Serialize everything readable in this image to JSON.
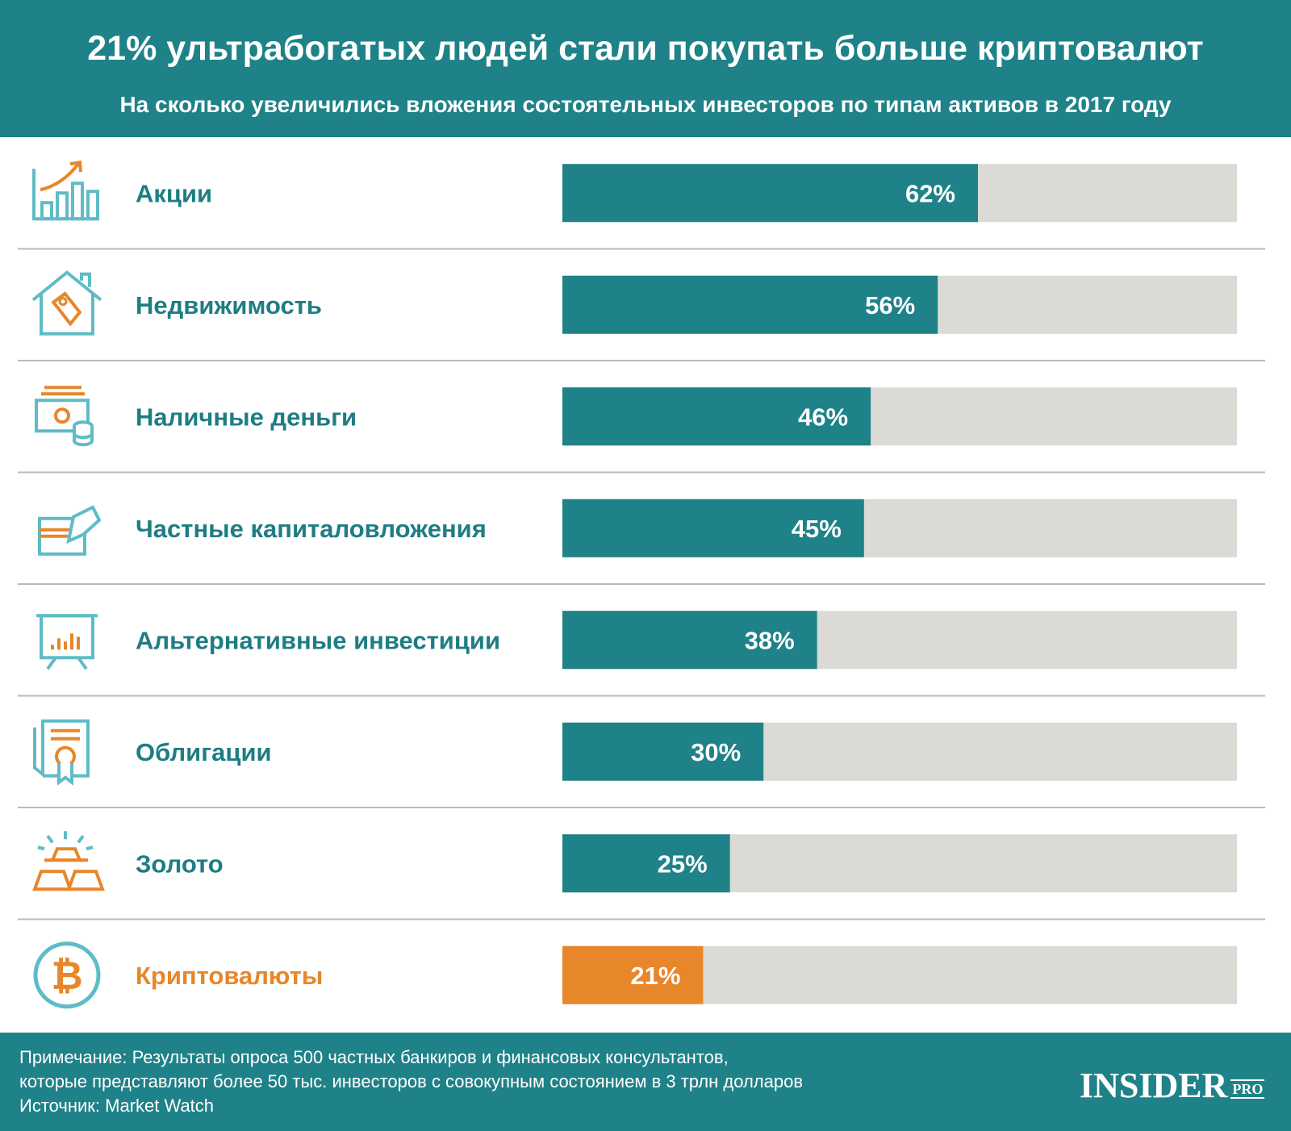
{
  "header": {
    "title": "21% ультрабогатых людей стали покупать больше криптовалют",
    "subtitle": "На сколько увеличились вложения состоятельных инвесторов по типам активов в 2017 году"
  },
  "colors": {
    "header_bg": "#1e8288",
    "bar": "#1e8288",
    "bar_highlight": "#e8862a",
    "track": "#dcdad4",
    "label": "#1e7d83",
    "label_highlight": "#e8862a",
    "icon_teal": "#5fbcc6",
    "icon_orange": "#e8862a",
    "divider": "#b9b9b9"
  },
  "chart_data": {
    "type": "bar",
    "orientation": "horizontal",
    "title": "21% ультрабогатых людей стали покупать больше криптовалют",
    "subtitle": "На сколько увеличились вложения состоятельных инвесторов по типам активов в 2017 году",
    "xlim": [
      0,
      100
    ],
    "unit": "%",
    "grid": false,
    "categories": [
      "Акции",
      "Недвижимость",
      "Наличные деньги",
      "Частные капиталовложения",
      "Альтернативные инвестиции",
      "Облигации",
      "Золото",
      "Криптовалюты"
    ],
    "values": [
      62,
      56,
      46,
      45,
      38,
      30,
      25,
      21
    ],
    "value_labels": [
      "62%",
      "56%",
      "46%",
      "45%",
      "38%",
      "30%",
      "25%",
      "21%"
    ],
    "icons": [
      "chart-growth-icon",
      "house-tag-icon",
      "cash-coins-icon",
      "card-hand-icon",
      "presentation-board-icon",
      "certificate-icon",
      "gold-bars-icon",
      "bitcoin-icon"
    ],
    "highlight": [
      false,
      false,
      false,
      false,
      false,
      false,
      false,
      true
    ]
  },
  "footer": {
    "note": "Примечание: Результаты опроса 500 частных банкиров и финансовых консультантов,",
    "note_line2": "которые представляют более 50 тыс. инвесторов с совокупным состоянием в 3 трлн долларов",
    "source": "Источник: Market Watch",
    "logo": "INSIDER",
    "logo_pro": "PRO"
  }
}
